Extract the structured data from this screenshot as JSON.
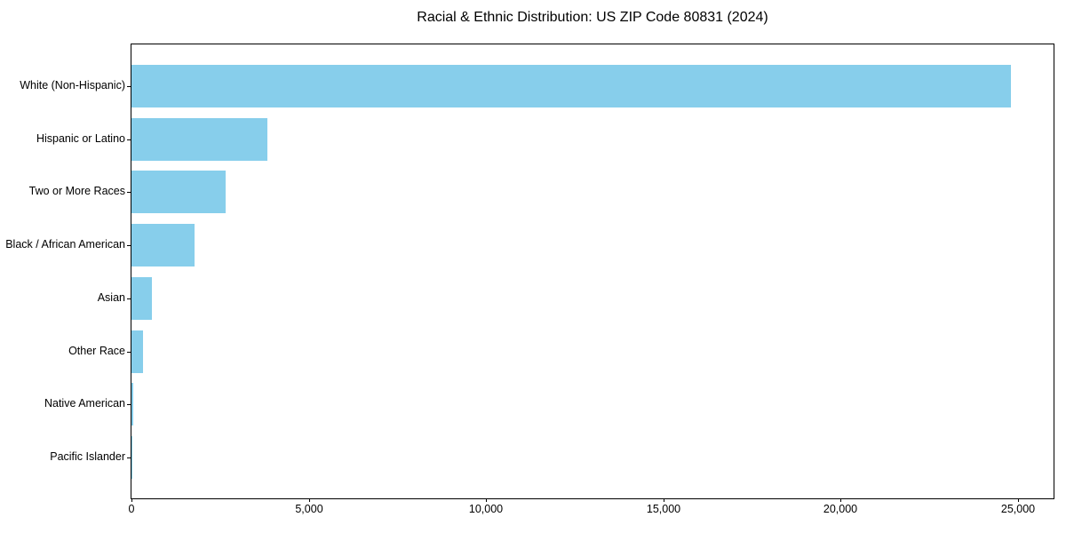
{
  "title": "Racial & Ethnic Distribution: US ZIP Code 80831 (2024)",
  "chart_data": {
    "type": "bar",
    "orientation": "horizontal",
    "title": "Racial & Ethnic Distribution: US ZIP Code 80831 (2024)",
    "xlabel": "",
    "ylabel": "",
    "categories": [
      "White (Non-Hispanic)",
      "Hispanic or Latino",
      "Two or More Races",
      "Black / African American",
      "Asian",
      "Other Race",
      "Native American",
      "Pacific Islander"
    ],
    "values": [
      24800,
      3830,
      2650,
      1780,
      575,
      325,
      50,
      25
    ],
    "xlim": [
      0,
      26000
    ],
    "x_ticks": [
      0,
      5000,
      10000,
      15000,
      20000,
      25000
    ],
    "x_tick_labels": [
      "0",
      "5,000",
      "10,000",
      "15,000",
      "20,000",
      "25,000"
    ],
    "grid": false,
    "legend": null,
    "bar_color": "#87CEEB"
  },
  "colors": {
    "bar": "#87CEEB",
    "axis": "#000000",
    "text": "#000000",
    "background": "#ffffff"
  }
}
